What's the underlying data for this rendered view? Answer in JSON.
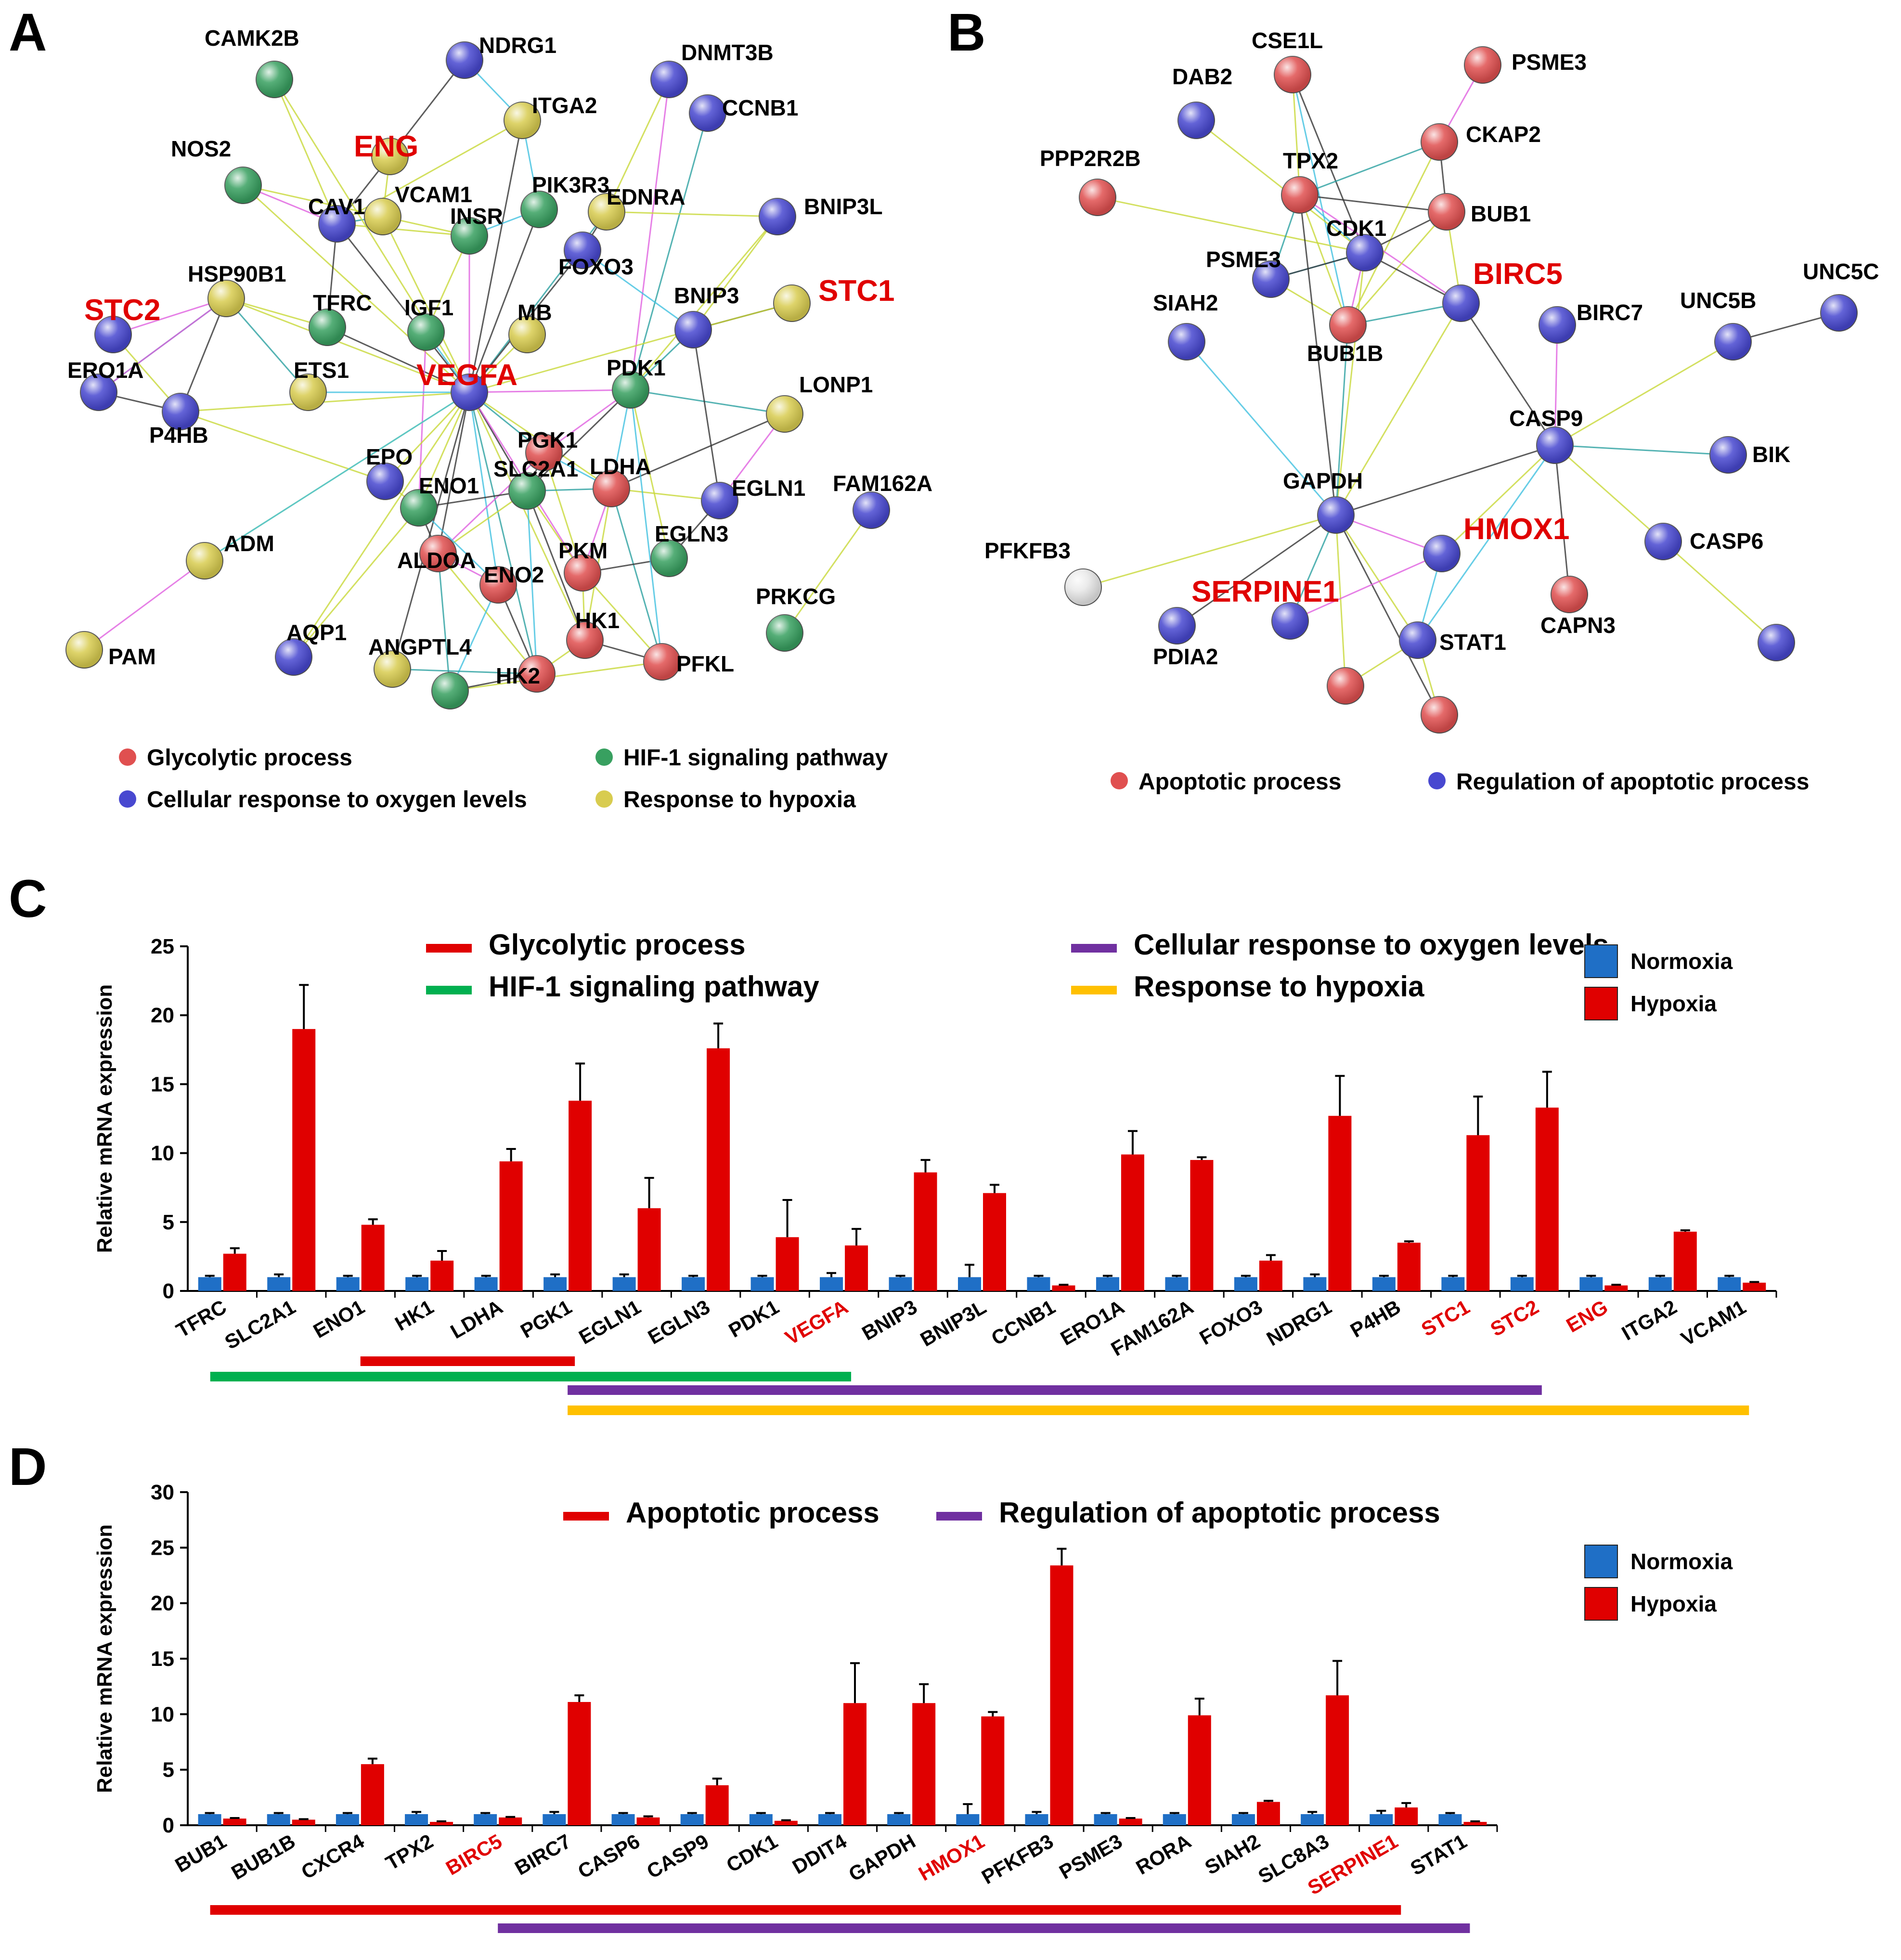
{
  "figure": {
    "panels": [
      "A",
      "B",
      "C",
      "D"
    ],
    "colors": {
      "glycolytic": "#e05050",
      "oxygen": "#4848d0",
      "hif": "#38a060",
      "hypoxia": "#d8cc50",
      "apoptotic": "#e05050",
      "regulation": "#4848d0",
      "normoxia_bar": "#1f6fc6",
      "hypoxia_bar": "#e00000",
      "bar_line_red": "#e00000",
      "bar_line_green": "#00b050",
      "bar_line_purple": "#7030a0",
      "bar_line_yellow": "#ffc000",
      "highlight_text": "#e00000"
    }
  },
  "network_a": {
    "legend": [
      {
        "label": "Glycolytic process",
        "color": "#e05050"
      },
      {
        "label": "HIF-1 signaling pathway",
        "color": "#38a060"
      },
      {
        "label": "Cellular response to oxygen levels",
        "color": "#4848d0"
      },
      {
        "label": "Response to hypoxia",
        "color": "#d8cc50"
      }
    ],
    "nodes": [
      {
        "label": "CAMK2B",
        "c": "hif",
        "hl": false
      },
      {
        "label": "NDRG1",
        "c": "oxygen",
        "hl": false
      },
      {
        "label": "DNMT3B",
        "c": "oxygen",
        "hl": false
      },
      {
        "label": "CCNB1",
        "c": "oxygen",
        "hl": false
      },
      {
        "label": "ENG",
        "c": "hypoxia",
        "hl": true
      },
      {
        "label": "ITGA2",
        "c": "hypoxia",
        "hl": false
      },
      {
        "label": "NOS2",
        "c": "hif",
        "hl": false
      },
      {
        "label": "CAV1",
        "c": "oxygen",
        "hl": false
      },
      {
        "label": "VCAM1",
        "c": "hypoxia",
        "hl": false
      },
      {
        "label": "PIK3R3",
        "c": "hif",
        "hl": false
      },
      {
        "label": "INSR",
        "c": "hif",
        "hl": false
      },
      {
        "label": "EDNRA",
        "c": "hypoxia",
        "hl": false
      },
      {
        "label": "BNIP3L",
        "c": "oxygen",
        "hl": false
      },
      {
        "label": "FOXO3",
        "c": "oxygen",
        "hl": false
      },
      {
        "label": "STC2",
        "c": "oxygen",
        "hl": true
      },
      {
        "label": "HSP90B1",
        "c": "hypoxia",
        "hl": false
      },
      {
        "label": "TFRC",
        "c": "hif",
        "hl": false
      },
      {
        "label": "IGF1",
        "c": "hif",
        "hl": false
      },
      {
        "label": "MB",
        "c": "hypoxia",
        "hl": false
      },
      {
        "label": "BNIP3",
        "c": "oxygen",
        "hl": false
      },
      {
        "label": "STC1",
        "c": "hypoxia",
        "hl": true
      },
      {
        "label": "ERO1A",
        "c": "oxygen",
        "hl": false
      },
      {
        "label": "ETS1",
        "c": "hypoxia",
        "hl": false
      },
      {
        "label": "VEGFA",
        "c": "oxygen",
        "hl": true
      },
      {
        "label": "PDK1",
        "c": "hif",
        "hl": false
      },
      {
        "label": "LONP1",
        "c": "hypoxia",
        "hl": false
      },
      {
        "label": "P4HB",
        "c": "oxygen",
        "hl": false
      },
      {
        "label": "EPO",
        "c": "oxygen",
        "hl": false
      },
      {
        "label": "PGK1",
        "c": "glycolytic",
        "hl": false
      },
      {
        "label": "SLC2A1",
        "c": "hif",
        "hl": false
      },
      {
        "label": "LDHA",
        "c": "glycolytic",
        "hl": false
      },
      {
        "label": "EGLN1",
        "c": "oxygen",
        "hl": false
      },
      {
        "label": "FAM162A",
        "c": "oxygen",
        "hl": false
      },
      {
        "label": "ENO1",
        "c": "hif",
        "hl": false
      },
      {
        "label": "ADM",
        "c": "hypoxia",
        "hl": false
      },
      {
        "label": "ALDOA",
        "c": "glycolytic",
        "hl": false
      },
      {
        "label": "EGLN3",
        "c": "hif",
        "hl": false
      },
      {
        "label": "PKM",
        "c": "glycolytic",
        "hl": false
      },
      {
        "label": "ENO2",
        "c": "glycolytic",
        "hl": false
      },
      {
        "label": "PRKCG",
        "c": "hif",
        "hl": false
      },
      {
        "label": "PAM",
        "c": "hypoxia",
        "hl": false
      },
      {
        "label": "AQP1",
        "c": "oxygen",
        "hl": false
      },
      {
        "label": "ANGPTL4",
        "c": "hypoxia",
        "hl": false
      },
      {
        "label": "HK1",
        "c": "glycolytic",
        "hl": false
      },
      {
        "label": "PFKL",
        "c": "glycolytic",
        "hl": false
      },
      {
        "label": "HK2",
        "c": "glycolytic",
        "hl": false
      },
      {
        "label": "",
        "c": "hif",
        "hl": false
      }
    ]
  },
  "network_b": {
    "legend": [
      {
        "label": "Apoptotic process",
        "color": "#e05050"
      },
      {
        "label": "Regulation of apoptotic process",
        "color": "#4848d0"
      }
    ],
    "nodes": [
      {
        "label": "CSE1L",
        "c": "apoptotic",
        "hl": false
      },
      {
        "label": "PSME3",
        "c": "apoptotic",
        "hl": false
      },
      {
        "label": "DAB2",
        "c": "regulation",
        "hl": false
      },
      {
        "label": "CKAP2",
        "c": "apoptotic",
        "hl": false
      },
      {
        "label": "PPP2R2B",
        "c": "apoptotic",
        "hl": false
      },
      {
        "label": "TPX2",
        "c": "apoptotic",
        "hl": false
      },
      {
        "label": "BUB1",
        "c": "apoptotic",
        "hl": false
      },
      {
        "label": "CDK1",
        "c": "regulation",
        "hl": false
      },
      {
        "label": "BIRC5",
        "c": "regulation",
        "hl": true
      },
      {
        "label": "PSME3",
        "c": "regulation",
        "hl": false
      },
      {
        "label": "UNC5C",
        "c": "regulation",
        "hl": false
      },
      {
        "label": "SIAH2",
        "c": "regulation",
        "hl": false
      },
      {
        "label": "BIRC7",
        "c": "regulation",
        "hl": false
      },
      {
        "label": "UNC5B",
        "c": "regulation",
        "hl": false
      },
      {
        "label": "BUB1B",
        "c": "apoptotic",
        "hl": false
      },
      {
        "label": "CASP9",
        "c": "regulation",
        "hl": false
      },
      {
        "label": "BIK",
        "c": "regulation",
        "hl": false
      },
      {
        "label": "GAPDH",
        "c": "regulation",
        "hl": false
      },
      {
        "label": "HMOX1",
        "c": "regulation",
        "hl": true
      },
      {
        "label": "PFKFB3",
        "c": "none",
        "hl": false
      },
      {
        "label": "CASP6",
        "c": "regulation",
        "hl": false
      },
      {
        "label": "SERPINE1",
        "c": "regulation",
        "hl": true
      },
      {
        "label": "CAPN3",
        "c": "apoptotic",
        "hl": false
      },
      {
        "label": "PDIA2",
        "c": "regulation",
        "hl": false
      },
      {
        "label": "STAT1",
        "c": "regulation",
        "hl": false
      },
      {
        "label": "",
        "c": "apoptotic",
        "hl": false
      },
      {
        "label": "",
        "c": "apoptotic",
        "hl": false
      },
      {
        "label": "",
        "c": "regulation",
        "hl": false
      }
    ]
  },
  "chart_data": [
    {
      "type": "bar",
      "panel": "C",
      "ylabel": "Relative mRNA expression",
      "ylim": [
        0,
        25
      ],
      "yticks": [
        0,
        5,
        10,
        15,
        20,
        25
      ],
      "categories": [
        "TFRC",
        "SLC2A1",
        "ENO1",
        "HK1",
        "LDHA",
        "PGK1",
        "EGLN1",
        "EGLN3",
        "PDK1",
        "VEGFA",
        "BNIP3",
        "BNIP3L",
        "CCNB1",
        "ERO1A",
        "FAM162A",
        "FOXO3",
        "NDRG1",
        "P4HB",
        "STC1",
        "STC2",
        "ENG",
        "ITGA2",
        "VCAM1"
      ],
      "highlight_categories": [
        "VEGFA",
        "STC1",
        "STC2",
        "ENG"
      ],
      "series": [
        {
          "name": "Normoxia",
          "color": "#1f6fc6",
          "values": [
            1,
            1,
            1,
            1,
            1,
            1,
            1,
            1,
            1,
            1,
            1,
            1,
            1,
            1,
            1,
            1,
            1,
            1,
            1,
            1,
            1,
            1,
            1
          ],
          "errors": [
            0.1,
            0.2,
            0.1,
            0.1,
            0.1,
            0.2,
            0.2,
            0.1,
            0.1,
            0.3,
            0.1,
            0.9,
            0.1,
            0.1,
            0.1,
            0.1,
            0.2,
            0.1,
            0.1,
            0.1,
            0.1,
            0.1,
            0.1
          ]
        },
        {
          "name": "Hypoxia",
          "color": "#e00000",
          "values": [
            2.7,
            19.0,
            4.8,
            2.2,
            9.4,
            13.8,
            6.0,
            17.6,
            3.9,
            3.3,
            8.6,
            7.1,
            0.4,
            9.9,
            9.5,
            2.2,
            12.7,
            3.5,
            11.3,
            13.3,
            0.4,
            4.3,
            0.6
          ],
          "errors": [
            0.4,
            3.2,
            0.4,
            0.7,
            0.9,
            2.7,
            2.2,
            1.8,
            2.7,
            1.2,
            0.9,
            0.6,
            0.05,
            1.7,
            0.2,
            0.4,
            2.9,
            0.1,
            2.8,
            2.6,
            0.05,
            0.1,
            0.05
          ]
        }
      ],
      "category_legend": [
        {
          "label": "Glycolytic process",
          "color": "#e00000"
        },
        {
          "label": "HIF-1 signaling pathway",
          "color": "#00b050"
        },
        {
          "label": "Cellular response to oxygen levels",
          "color": "#7030a0"
        },
        {
          "label": "Response to hypoxia",
          "color": "#ffc000"
        }
      ],
      "group_lines": [
        {
          "from": "TFRC",
          "to": "VEGFA",
          "color": "#00b050"
        },
        {
          "from": "ENO1",
          "to": "PGK1",
          "color": "#e00000"
        },
        {
          "from": "PGK1",
          "to": "STC2",
          "color": "#7030a0"
        },
        {
          "from": "PGK1",
          "to": "VCAM1",
          "color": "#ffc000"
        }
      ]
    },
    {
      "type": "bar",
      "panel": "D",
      "ylabel": "Relative mRNA expression",
      "ylim": [
        0,
        30
      ],
      "yticks": [
        0,
        5,
        10,
        15,
        20,
        25,
        30
      ],
      "categories": [
        "BUB1",
        "BUB1B",
        "CXCR4",
        "TPX2",
        "BIRC5",
        "BIRC7",
        "CASP6",
        "CASP9",
        "CDK1",
        "DDIT4",
        "GAPDH",
        "HMOX1",
        "PFKFB3",
        "PSME3",
        "RORA",
        "SIAH2",
        "SLC8A3",
        "SERPINE1",
        "STAT1"
      ],
      "highlight_categories": [
        "BIRC5",
        "HMOX1",
        "SERPINE1"
      ],
      "series": [
        {
          "name": "Normoxia",
          "color": "#1f6fc6",
          "values": [
            1,
            1,
            1,
            1,
            1,
            1,
            1,
            1,
            1,
            1,
            1,
            1,
            1,
            1,
            1,
            1,
            1,
            1,
            1
          ],
          "errors": [
            0.1,
            0.1,
            0.1,
            0.2,
            0.1,
            0.2,
            0.1,
            0.1,
            0.1,
            0.1,
            0.1,
            0.9,
            0.2,
            0.1,
            0.1,
            0.1,
            0.2,
            0.3,
            0.1
          ],
          "error_sides": "up"
        },
        {
          "name": "Hypoxia",
          "color": "#e00000",
          "values": [
            0.6,
            0.5,
            5.5,
            0.3,
            0.7,
            11.1,
            0.7,
            3.6,
            0.4,
            11.0,
            11.0,
            9.8,
            23.4,
            0.6,
            9.9,
            2.1,
            11.7,
            1.6,
            0.3
          ],
          "errors": [
            0.05,
            0.05,
            0.5,
            0.05,
            0.05,
            0.6,
            0.1,
            0.6,
            0.05,
            3.6,
            1.7,
            0.4,
            1.5,
            0.05,
            1.5,
            0.1,
            3.1,
            0.4,
            0.05
          ]
        }
      ],
      "category_legend": [
        {
          "label": "Apoptotic process",
          "color": "#e00000"
        },
        {
          "label": "Regulation of apoptotic process",
          "color": "#7030a0"
        }
      ],
      "group_lines": [
        {
          "from": "BUB1",
          "to": "SERPINE1",
          "color": "#e00000"
        },
        {
          "from": "BIRC5",
          "to": "STAT1",
          "color": "#7030a0"
        }
      ]
    }
  ]
}
